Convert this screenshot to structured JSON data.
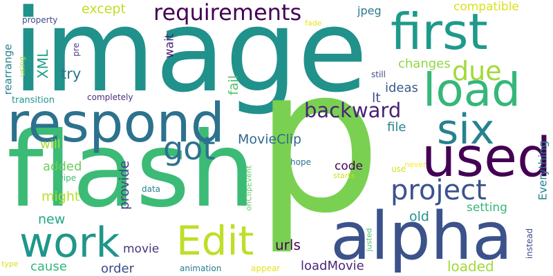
{
  "words": [
    {
      "text": "image",
      "color": "#21918c"
    },
    {
      "text": "p",
      "color": "#7ad151"
    },
    {
      "text": "flash",
      "color": "#3bbb75"
    },
    {
      "text": "alpha",
      "color": "#3b528b"
    },
    {
      "text": "respond",
      "color": "#2c728e"
    },
    {
      "text": "first",
      "color": "#1f9a8a"
    },
    {
      "text": "load",
      "color": "#35b779"
    },
    {
      "text": "used",
      "color": "#440154"
    },
    {
      "text": "six",
      "color": "#26828e"
    },
    {
      "text": "work",
      "color": "#1f968b"
    },
    {
      "text": "Edit",
      "color": "#bddf26"
    },
    {
      "text": "due",
      "color": "#a0da39"
    },
    {
      "text": "project",
      "color": "#3b528b"
    },
    {
      "text": "requirements",
      "color": "#440154"
    },
    {
      "text": "backward",
      "color": "#482475"
    },
    {
      "text": "got",
      "color": "#2c728e"
    },
    {
      "text": "except",
      "color": "#bddf26"
    },
    {
      "text": "MovieClip",
      "color": "#31688e"
    },
    {
      "text": "jpeg",
      "color": "#2a788e"
    },
    {
      "text": "compatible",
      "color": "#d8e219"
    },
    {
      "text": "changes",
      "color": "#8fd744"
    },
    {
      "text": "ideas",
      "color": "#38598c"
    },
    {
      "text": "lt",
      "color": "#3e4989"
    },
    {
      "text": "file",
      "color": "#25848e"
    },
    {
      "text": "try",
      "color": "#2c728e"
    },
    {
      "text": "wait",
      "color": "#482071"
    },
    {
      "text": "fail",
      "color": "#4ec36b"
    },
    {
      "text": "XML",
      "color": "#1f9e89"
    },
    {
      "text": "rearrange",
      "color": "#26828e"
    },
    {
      "text": "will",
      "color": "#a8db34"
    },
    {
      "text": "added",
      "color": "#6ccd5a"
    },
    {
      "text": "might",
      "color": "#b5de2b"
    },
    {
      "text": "new",
      "color": "#22a785"
    },
    {
      "text": "cause",
      "color": "#31b57b"
    },
    {
      "text": "order",
      "color": "#3e4989"
    },
    {
      "text": "movie",
      "color": "#46327e"
    },
    {
      "text": "provide",
      "color": "#3f4788"
    },
    {
      "text": "code",
      "color": "#440154"
    },
    {
      "text": "urls",
      "color": "#450457"
    },
    {
      "text": "loadMovie",
      "color": "#482878"
    },
    {
      "text": "loaded",
      "color": "#a2da37"
    },
    {
      "text": "old",
      "color": "#21908d"
    },
    {
      "text": "setting",
      "color": "#35b779"
    },
    {
      "text": "Everything",
      "color": "#26818e"
    },
    {
      "text": "property",
      "color": "#3e4a89"
    },
    {
      "text": "pre",
      "color": "#424086"
    },
    {
      "text": "using",
      "color": "#a5db36"
    },
    {
      "text": "transition",
      "color": "#20928c"
    },
    {
      "text": "completely",
      "color": "#472d7b"
    },
    {
      "text": "fade",
      "color": "#e5e419"
    },
    {
      "text": "still",
      "color": "#3d4d8a"
    },
    {
      "text": "never",
      "color": "#fde725"
    },
    {
      "text": "hope",
      "color": "#2c738e"
    },
    {
      "text": "starts",
      "color": "#d0e11c"
    },
    {
      "text": "use",
      "color": "#d2e21b"
    },
    {
      "text": "wipe",
      "color": "#3fbc73"
    },
    {
      "text": "data",
      "color": "#26828e"
    },
    {
      "text": "onClipEvent",
      "color": "#5ec962"
    },
    {
      "text": "justed",
      "color": "#4ac16d"
    },
    {
      "text": "instead",
      "color": "#3e4a89"
    },
    {
      "text": "type",
      "color": "#d5e21a"
    },
    {
      "text": "animation",
      "color": "#2a788e"
    },
    {
      "text": "appear",
      "color": "#e7e419"
    }
  ]
}
